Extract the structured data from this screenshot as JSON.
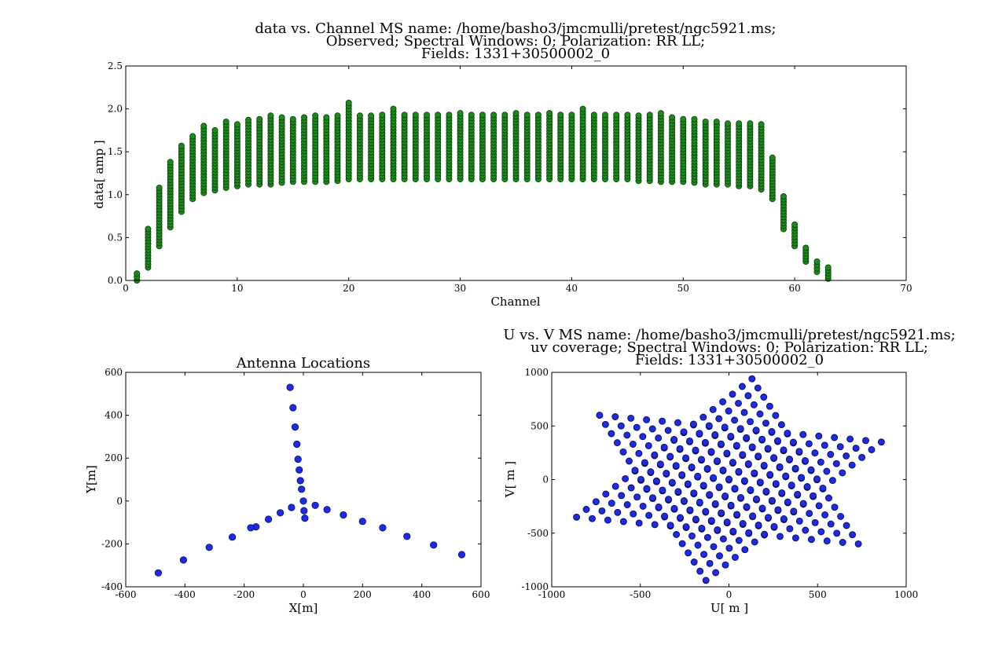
{
  "chart_data": [
    {
      "type": "scatter",
      "title_lines": [
        "data vs. Channel  MS name: /home/basho3/jmcmulli/pretest/ngc5921.ms;",
        "Observed; Spectral Windows:  0; Polarization: RR LL;",
        "Fields: 1331+30500002_0"
      ],
      "xlabel": "Channel",
      "ylabel": "data[ amp ]",
      "xlim": [
        0,
        70
      ],
      "ylim": [
        0,
        2.5
      ],
      "xticks": [
        "0",
        "10",
        "20",
        "30",
        "40",
        "50",
        "60",
        "70"
      ],
      "yticks": [
        "0.0",
        "0.5",
        "1.0",
        "1.5",
        "2.0",
        "2.5"
      ],
      "marker_color": "#1a8a1a",
      "channels": [
        1,
        2,
        3,
        4,
        5,
        6,
        7,
        8,
        9,
        10,
        11,
        12,
        13,
        14,
        15,
        16,
        17,
        18,
        19,
        20,
        21,
        22,
        23,
        24,
        25,
        26,
        27,
        28,
        29,
        30,
        31,
        32,
        33,
        34,
        35,
        36,
        37,
        38,
        39,
        40,
        41,
        42,
        43,
        44,
        45,
        46,
        47,
        48,
        49,
        50,
        51,
        52,
        53,
        54,
        55,
        56,
        57,
        58,
        59,
        60,
        61,
        62,
        63
      ],
      "amp_min": [
        0.0,
        0.15,
        0.4,
        0.62,
        0.8,
        0.95,
        1.02,
        1.05,
        1.08,
        1.1,
        1.12,
        1.12,
        1.12,
        1.14,
        1.15,
        1.15,
        1.15,
        1.15,
        1.16,
        1.18,
        1.18,
        1.18,
        1.18,
        1.18,
        1.18,
        1.18,
        1.18,
        1.18,
        1.18,
        1.18,
        1.18,
        1.18,
        1.18,
        1.18,
        1.18,
        1.18,
        1.18,
        1.18,
        1.18,
        1.18,
        1.18,
        1.18,
        1.18,
        1.18,
        1.18,
        1.16,
        1.16,
        1.15,
        1.15,
        1.15,
        1.14,
        1.12,
        1.12,
        1.12,
        1.1,
        1.1,
        1.06,
        0.95,
        0.6,
        0.4,
        0.22,
        0.1,
        0.02
      ],
      "amp_max": [
        0.08,
        0.6,
        1.08,
        1.38,
        1.57,
        1.68,
        1.8,
        1.75,
        1.85,
        1.82,
        1.87,
        1.88,
        1.92,
        1.9,
        1.88,
        1.9,
        1.92,
        1.9,
        1.92,
        2.07,
        1.92,
        1.92,
        1.93,
        2.0,
        1.93,
        1.93,
        1.93,
        1.93,
        1.93,
        1.95,
        1.93,
        1.93,
        1.93,
        1.93,
        1.95,
        1.93,
        1.93,
        1.95,
        1.93,
        1.93,
        2.0,
        1.93,
        1.93,
        1.93,
        1.93,
        1.92,
        1.93,
        1.95,
        1.9,
        1.88,
        1.88,
        1.85,
        1.85,
        1.83,
        1.83,
        1.83,
        1.82,
        1.43,
        0.98,
        0.65,
        0.38,
        0.22,
        0.15
      ]
    },
    {
      "type": "scatter",
      "title_lines": [
        "Antenna Locations"
      ],
      "xlabel": "X[m]",
      "ylabel": "Y[m]",
      "xlim": [
        -600,
        600
      ],
      "ylim": [
        -400,
        600
      ],
      "xticks": [
        "-600",
        "-400",
        "-200",
        "0",
        "200",
        "400",
        "600"
      ],
      "yticks": [
        "-400",
        "-200",
        "0",
        "200",
        "400",
        "600"
      ],
      "marker_color": "#1c2be8",
      "x": [
        -45,
        -35,
        -28,
        -22,
        -18,
        -14,
        -10,
        -6,
        0,
        2,
        5,
        -40,
        -78,
        -118,
        -160,
        -178,
        -240,
        -318,
        -405,
        -490,
        40,
        80,
        135,
        200,
        268,
        350,
        440,
        535
      ],
      "y": [
        530,
        435,
        345,
        265,
        195,
        145,
        95,
        55,
        0,
        -45,
        -80,
        -30,
        -55,
        -85,
        -120,
        -125,
        -168,
        -216,
        -275,
        -335,
        -20,
        -40,
        -65,
        -95,
        -125,
        -165,
        -205,
        -250
      ]
    },
    {
      "type": "scatter",
      "title_lines": [
        "U vs. V  MS name: /home/basho3/jmcmulli/pretest/ngc5921.ms;",
        "uv coverage; Spectral Windows:  0; Polarization: RR LL;",
        "Fields: 1331+30500002_0"
      ],
      "xlabel": "U[ m ]",
      "ylabel": "V[ m ]",
      "xlim": [
        -1000,
        1000
      ],
      "ylim": [
        -1000,
        1000
      ],
      "xticks": [
        "-1000",
        "-500",
        "0",
        "500",
        "1000"
      ],
      "yticks": [
        "-1000",
        "-500",
        "0",
        "500",
        "1000"
      ],
      "marker_color": "#1c2be8",
      "hexagram_vertices": [
        [
          130,
          940
        ],
        [
          860,
          350
        ],
        [
          730,
          -600
        ],
        [
          -130,
          -940
        ],
        [
          -860,
          -350
        ],
        [
          -730,
          600
        ]
      ]
    }
  ]
}
